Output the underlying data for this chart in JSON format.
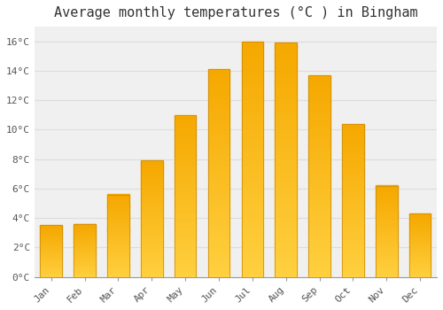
{
  "title": "Average monthly temperatures (°C ) in Bingham",
  "months": [
    "Jan",
    "Feb",
    "Mar",
    "Apr",
    "May",
    "Jun",
    "Jul",
    "Aug",
    "Sep",
    "Oct",
    "Nov",
    "Dec"
  ],
  "temperatures": [
    3.5,
    3.6,
    5.6,
    7.9,
    11.0,
    14.1,
    16.0,
    15.9,
    13.7,
    10.4,
    6.2,
    4.3
  ],
  "bar_color_top": "#F5A800",
  "bar_color_bottom": "#FFD040",
  "bar_edge_color": "#C8880A",
  "background_color": "#FFFFFF",
  "plot_bg_color": "#F0F0F0",
  "grid_color": "#DDDDDD",
  "ylim": [
    0,
    17
  ],
  "yticks": [
    0,
    2,
    4,
    6,
    8,
    10,
    12,
    14,
    16
  ],
  "ytick_labels": [
    "0°C",
    "2°C",
    "4°C",
    "6°C",
    "8°C",
    "10°C",
    "12°C",
    "14°C",
    "16°C"
  ],
  "title_fontsize": 11,
  "tick_fontsize": 8,
  "font_family": "monospace",
  "gradient_steps": 100
}
